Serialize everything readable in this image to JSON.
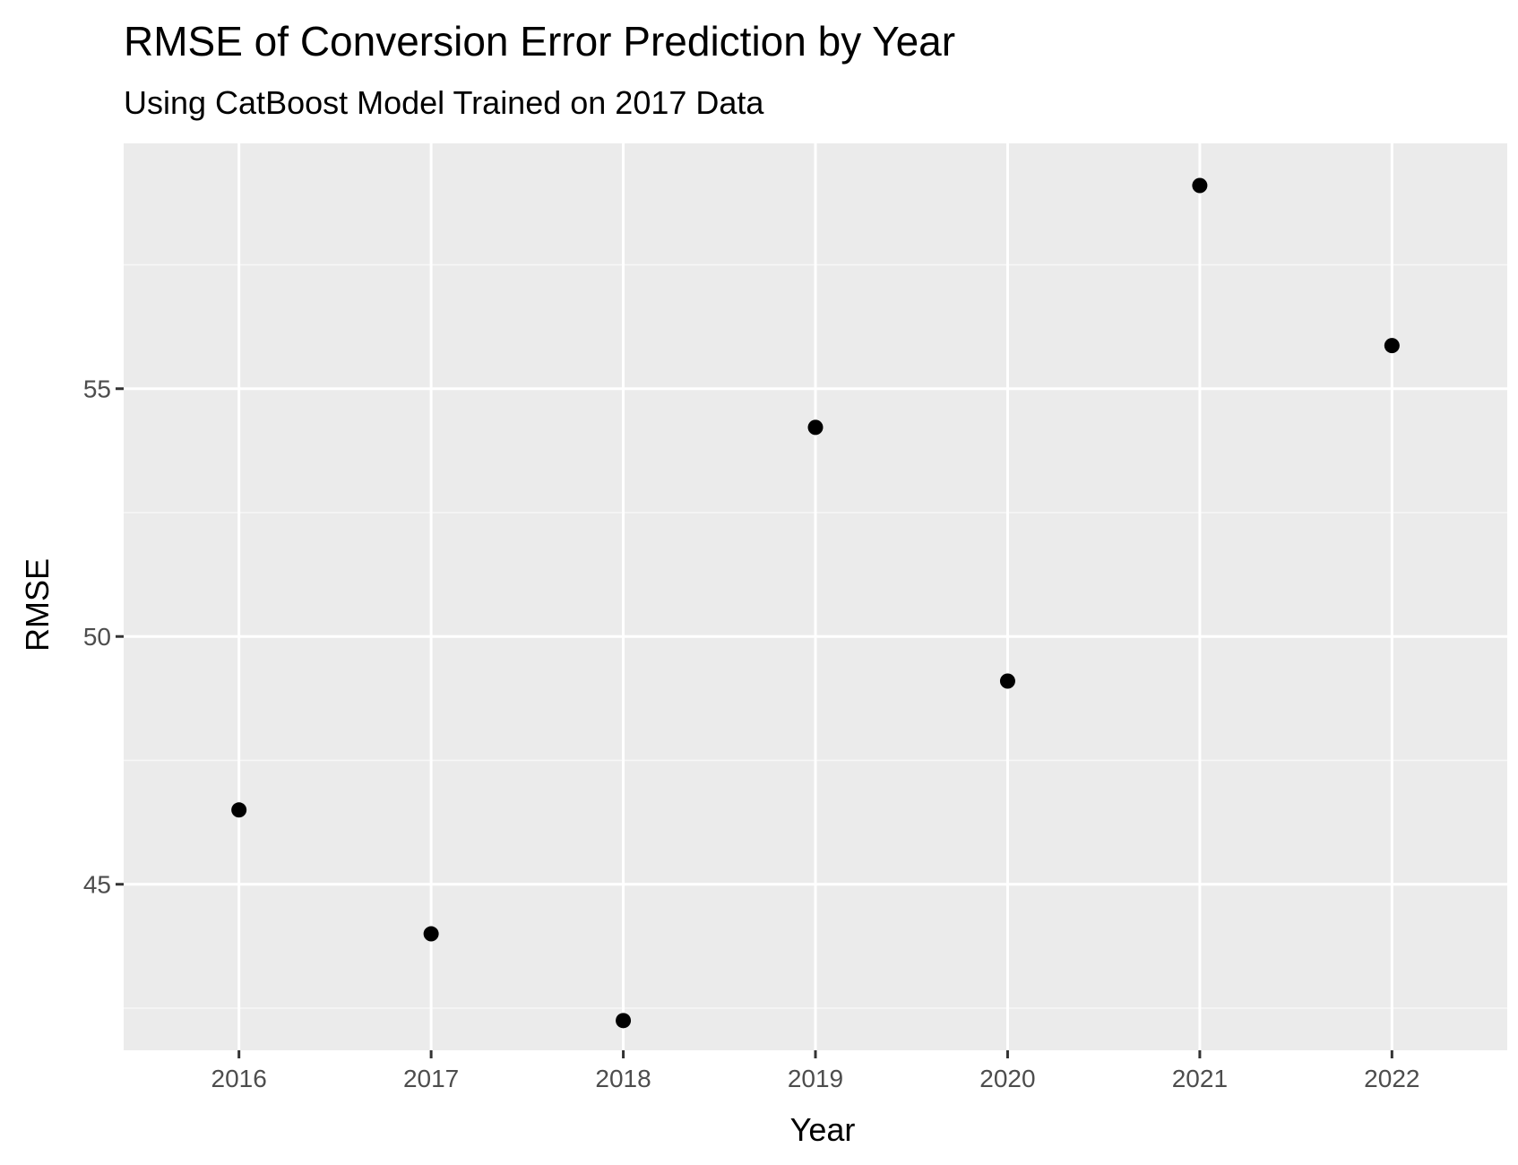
{
  "chart_data": {
    "type": "scatter",
    "title": "RMSE of Conversion Error Prediction by Year",
    "subtitle": "Using CatBoost Model Trained on 2017 Data",
    "xlabel": "Year",
    "ylabel": "RMSE",
    "x": [
      2016,
      2017,
      2018,
      2019,
      2020,
      2021,
      2022
    ],
    "values": [
      46.5,
      44.0,
      42.25,
      54.22,
      49.1,
      59.1,
      55.87
    ],
    "x_ticks": [
      "2016",
      "2017",
      "2018",
      "2019",
      "2020",
      "2021",
      "2022"
    ],
    "y_ticks": [
      45,
      50,
      55
    ],
    "y_tick_labels": [
      "45",
      "50",
      "55"
    ],
    "xlim": [
      2015.4,
      2022.6
    ],
    "ylim": [
      41.65,
      59.95
    ],
    "grid": true,
    "legend": "none",
    "colors": {
      "panel_background": "#ebebeb",
      "grid_major": "#ffffff",
      "grid_minor": "#f7f7f7",
      "point": "#000000",
      "tick_label": "#4d4d4d",
      "tick_mark": "#333333"
    }
  }
}
